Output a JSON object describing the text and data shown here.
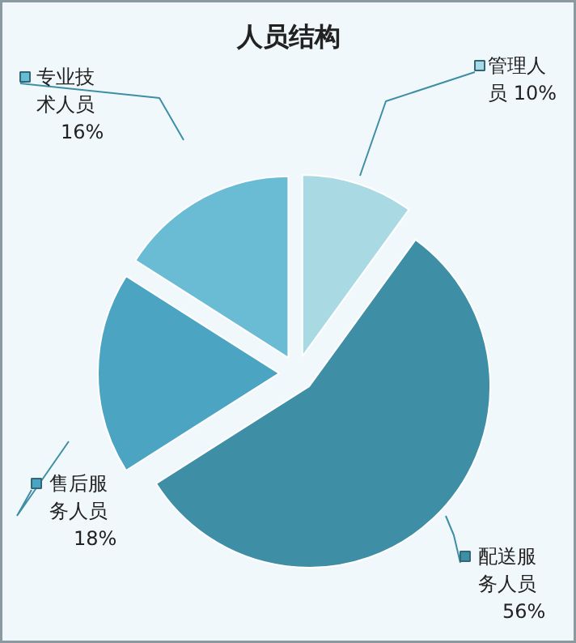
{
  "chart_data": {
    "type": "pie",
    "title": "人员结构",
    "categories": [
      "管理人员",
      "配送服务人员",
      "售后服务人员",
      "专业技术人员"
    ],
    "values": [
      10,
      56,
      18,
      16
    ],
    "colors": [
      "#a9d9e3",
      "#3e8ea5",
      "#4aa4c2",
      "#69bcd4"
    ],
    "value_labels": [
      "10%",
      "56%",
      "18%",
      "16%"
    ],
    "legend": "right"
  }
}
